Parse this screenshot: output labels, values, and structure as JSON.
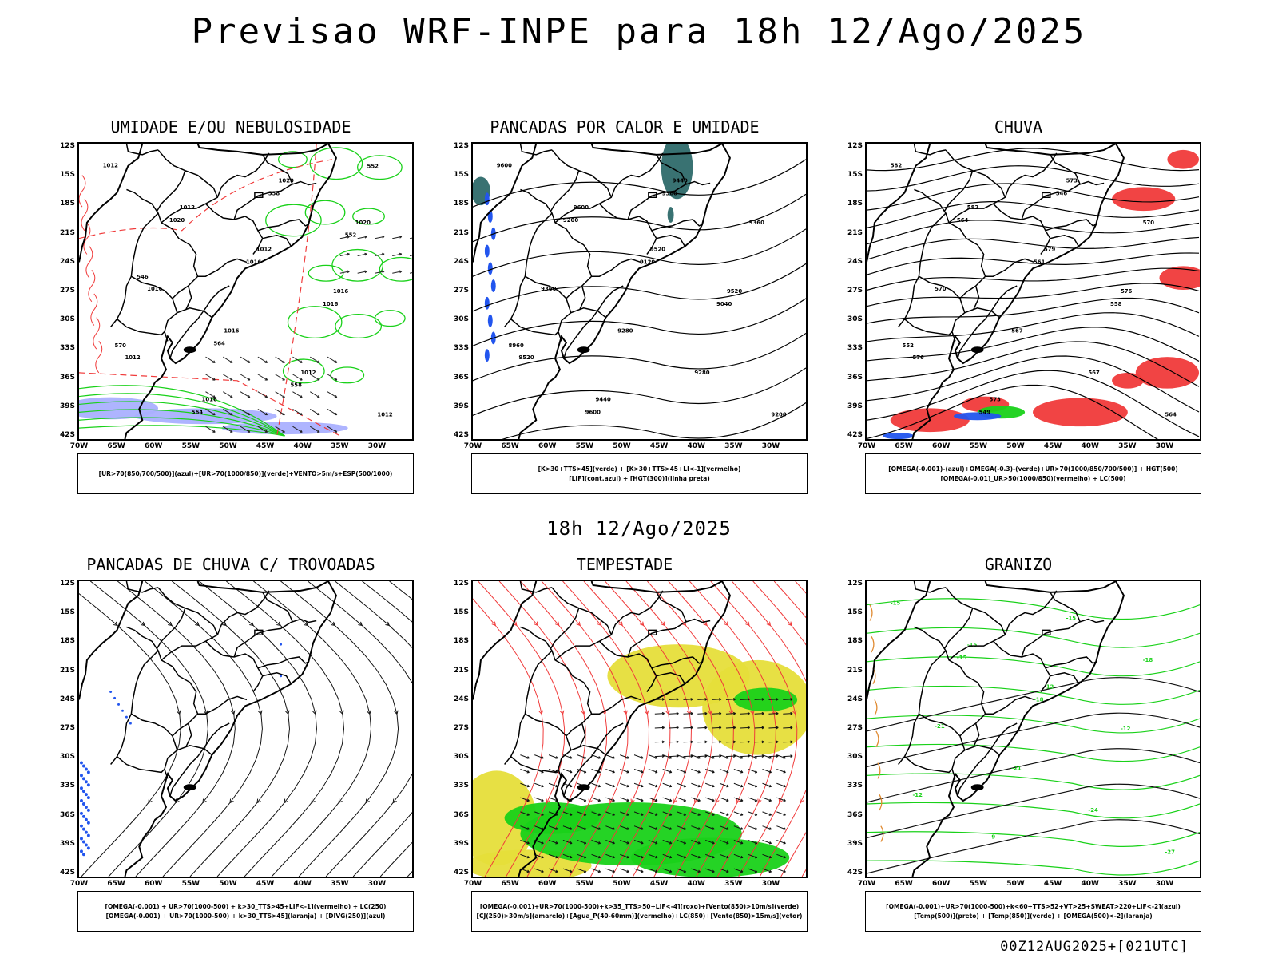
{
  "title": "Previsao WRF-INPE  para 18h 12/Ago/2025",
  "mid_title": "18h 12/Ago/2025",
  "footer": "00Z12AUG2025+[021UTC]",
  "axes": {
    "lat_labels": [
      "12S",
      "15S",
      "18S",
      "21S",
      "24S",
      "27S",
      "30S",
      "33S",
      "36S",
      "39S",
      "42S"
    ],
    "lon_labels": [
      "70W",
      "65W",
      "60W",
      "55W",
      "50W",
      "45W",
      "40W",
      "35W",
      "30W"
    ],
    "lat_range": [
      -42,
      -11
    ],
    "lon_range": [
      -70,
      -27
    ]
  },
  "colors": {
    "green": "#19d119",
    "red": "#f03a3a",
    "blue": "#2255ee",
    "lightblue": "#aab0ff",
    "yellow": "#e6de3a",
    "teal": "#2e6a6a",
    "orange": "#e08a30"
  },
  "panels": [
    {
      "title": "UMIDADE E/OU NEBULOSIDADE",
      "legend": [
        "[UR>70(850/700/500)](azul)+[UR>70(1000/850)](verde)+VENTO>5m/s+ESP(500/1000)"
      ],
      "labels": [
        "1012",
        "1012",
        "1012",
        "1016",
        "1012",
        "1016",
        "1020",
        "1020",
        "1016",
        "1016",
        "1012",
        "1012",
        "1020",
        "1016",
        "1016",
        "570",
        "564",
        "558",
        "552",
        "546",
        "564",
        "558",
        "552"
      ]
    },
    {
      "title": "PANCADAS POR CALOR E UMIDADE",
      "legend": [
        "[K>30+TTS>45](verde) + [K>30+TTS>45+LI<-1](vermelho)",
        "[LIF](cont.azul) + [HGT(300)](linha preta)"
      ],
      "labels": [
        "9600",
        "9600",
        "9520",
        "9520",
        "9520",
        "9440",
        "9440",
        "9360",
        "9360",
        "9280",
        "9280",
        "9200",
        "9200",
        "9120",
        "9040",
        "8960",
        "9600",
        "9360"
      ]
    },
    {
      "title": "CHUVA",
      "legend": [
        "[OMEGA(-0.001)-(azul)+OMEGA(-0.3)-(verde)+UR>70(1000/850/700/500)] + HGT(500)",
        "[OMEGA(-0.01)_UR>50(1000/850)(vermelho) + LC(500)"
      ],
      "labels": [
        "582",
        "582",
        "579",
        "576",
        "576",
        "573",
        "573",
        "570",
        "570",
        "567",
        "567",
        "564",
        "564",
        "561",
        "558",
        "552",
        "549",
        "546"
      ]
    },
    {
      "title": "PANCADAS DE CHUVA C/ TROVOADAS",
      "legend": [
        "[OMEGA(-0.001) + UR>70(1000-500) + k>30_TTS>45+LIF<-1](vermelho) + LC(250)",
        "[OMEGA(-0.001) + UR>70(1000-500) + k>30_TTS>45](laranja) + [DIVG(250)](azul)"
      ],
      "labels": []
    },
    {
      "title": "TEMPESTADE",
      "legend": [
        "[OMEGA(-0.001)+UR>70(1000-500)+k>35_TTS>50+LIF<-4](roxo)+[Vento(850)>10m/s](verde)",
        "[CJ(250)>30m/s](amarelo)+[Agua_P(40-60mm)](vermelho)+LC(850)+[Vento(850)>15m/s](vetor)"
      ],
      "labels": []
    },
    {
      "title": "GRANIZO",
      "legend": [
        "[OMEGA(-0.001)+UR>70(1000-500)+k<60+TTS>52+VT>25+SWEAT>220+LIF<-2](azul)",
        "[Temp(500)](preto) + [Temp(850)](verde) + [OMEGA(500)<-2](laranja)"
      ],
      "labels": [
        "-15",
        "-15",
        "-12",
        "-12",
        "-12",
        "-9",
        "-15",
        "-18",
        "-21",
        "-21",
        "-24",
        "-27",
        "-15",
        "-18"
      ]
    }
  ]
}
